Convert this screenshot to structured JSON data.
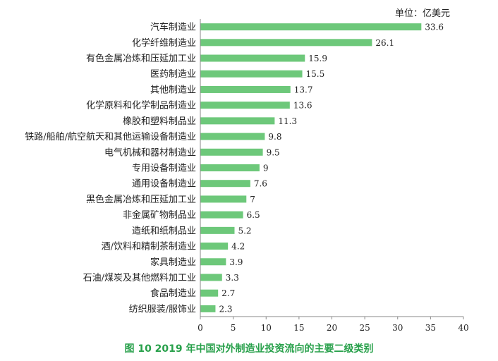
{
  "chart_data": {
    "type": "bar",
    "orientation": "horizontal",
    "unit_label": "单位：亿美元",
    "caption": "图 10    2019 年中国对外制造业投资流向的主要二级类别",
    "categories": [
      "汽车制造业",
      "化学纤维制造业",
      "有色金属冶炼和压延加工业",
      "医药制造业",
      "其他制造业",
      "化学原料和化学制品制造业",
      "橡胶和塑料制品业",
      "铁路/船舶/航空航天和其他运输设备制造业",
      "电气机械和器材制造业",
      "专用设备制造业",
      "通用设备制造业",
      "黑色金属冶炼和压延加工业",
      "非金属矿物制品业",
      "造纸和纸制品业",
      "酒/饮料和精制茶制造业",
      "家具制造业",
      "石油/煤炭及其他燃料加工业",
      "食品制造业",
      "纺织服装/服饰业"
    ],
    "values": [
      33.6,
      26.1,
      15.9,
      15.5,
      13.7,
      13.6,
      11.3,
      9.8,
      9.5,
      9,
      7.6,
      7,
      6.5,
      5.2,
      4.2,
      3.9,
      3.3,
      2.7,
      2.3
    ],
    "value_labels": [
      "33.6",
      "26.1",
      "15.9",
      "15.5",
      "13.7",
      "13.6",
      "11.3",
      "9.8",
      "9.5",
      "9",
      "7.6",
      "7",
      "6.5",
      "5.2",
      "4.2",
      "3.9",
      "3.3",
      "2.7",
      "2.3"
    ],
    "xlim": [
      0,
      40
    ],
    "xticks": [
      0,
      5,
      10,
      15,
      20,
      25,
      30,
      35,
      40
    ],
    "xtick_labels": [
      "0",
      "5",
      "10",
      "15",
      "20",
      "25",
      "30",
      "35",
      "40"
    ],
    "bar_color": "#6dc87a",
    "caption_color": "#27a04a",
    "grid": false
  }
}
